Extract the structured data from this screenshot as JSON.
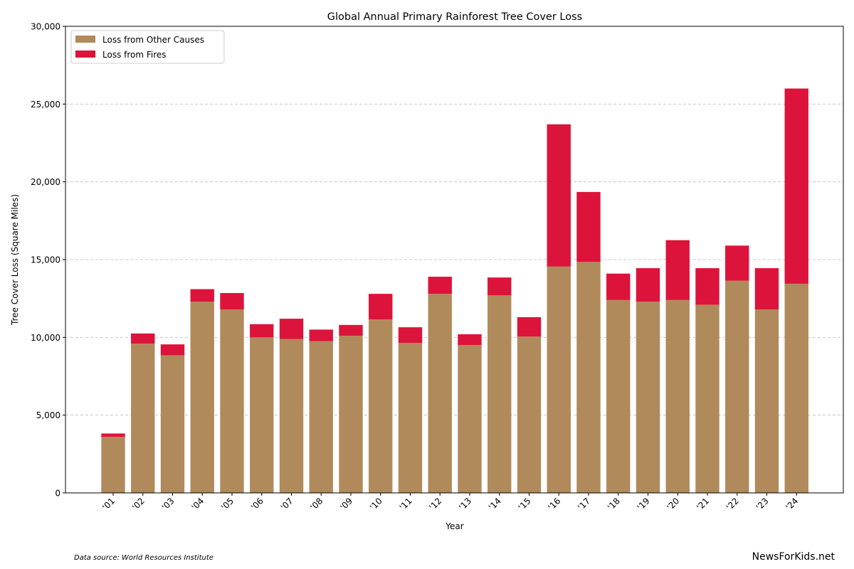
{
  "chart_data": {
    "type": "bar",
    "stacked": true,
    "title": "Global Annual Primary Rainforest Tree Cover Loss",
    "xlabel": "Year",
    "ylabel": "Tree Cover Loss (Square Miles)",
    "ylim": [
      0,
      30000
    ],
    "yticks": [
      0,
      5000,
      10000,
      15000,
      20000,
      25000,
      30000
    ],
    "ytick_labels": [
      "0",
      "5,000",
      "10,000",
      "15,000",
      "20,000",
      "25,000",
      "30,000"
    ],
    "grid": "y dashed",
    "legend_position": "top-left",
    "categories": [
      "'01",
      "'02",
      "'03",
      "'04",
      "'05",
      "'06",
      "'07",
      "'08",
      "'09",
      "'10",
      "'11",
      "'12",
      "'13",
      "'14",
      "'15",
      "'16",
      "'17",
      "'18",
      "'19",
      "'20",
      "'21",
      "'22",
      "'23",
      "'24"
    ],
    "series": [
      {
        "name": "Loss from Other Causes",
        "color": "#b08a5a",
        "values": [
          3600,
          9600,
          8850,
          12300,
          11800,
          10000,
          9900,
          9750,
          10100,
          11150,
          9650,
          12800,
          9500,
          12700,
          10050,
          14550,
          14850,
          12400,
          12300,
          12400,
          12100,
          13650,
          11800,
          13450
        ]
      },
      {
        "name": "Loss from Fires",
        "color": "#dc143c",
        "values": [
          220,
          650,
          700,
          800,
          1050,
          850,
          1300,
          750,
          700,
          1650,
          1000,
          1100,
          700,
          1150,
          1250,
          9150,
          4500,
          1700,
          2150,
          3850,
          2350,
          2250,
          2650,
          12550
        ]
      }
    ]
  },
  "footer": {
    "source": "Data source: World Resources Institute",
    "brand": "NewsForKids.net"
  }
}
